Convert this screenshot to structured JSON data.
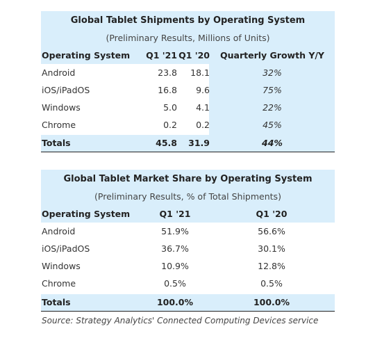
{
  "table1": {
    "title": "Global Tablet Shipments by Operating System",
    "subtitle": "(Preliminary Results, Millions of Units)",
    "headers": [
      "Operating System",
      "Q1 '21",
      "Q1 '20",
      "Quarterly Growth Y/Y"
    ],
    "rows": [
      [
        "Android",
        "23.8",
        "18.1",
        "32%"
      ],
      [
        "iOS/iPadOS",
        "16.8",
        "9.6",
        "75%"
      ],
      [
        "Windows",
        "5.0",
        "4.1",
        "22%"
      ],
      [
        "Chrome",
        "0.2",
        "0.2",
        "45%"
      ]
    ],
    "totals": [
      "Totals",
      "45.8",
      "31.9",
      "44%"
    ]
  },
  "table2": {
    "title": "Global Tablet Market Share by Operating System",
    "subtitle": "(Preliminary Results, % of Total Shipments)",
    "headers": [
      "Operating System",
      "Q1 '21",
      "Q1 '20"
    ],
    "rows": [
      [
        "Android",
        "51.9%",
        "56.6%"
      ],
      [
        "iOS/iPadOS",
        "36.7%",
        "30.1%"
      ],
      [
        "Windows",
        "10.9%",
        "12.8%"
      ],
      [
        "Chrome",
        "0.5%",
        "0.5%"
      ]
    ],
    "totals": [
      "Totals",
      "100.0%",
      "100.0%"
    ]
  },
  "source": "Source: Strategy Analytics' Connected Computing Devices service",
  "colors": {
    "band": "#d9eefb",
    "rule": "#222222"
  }
}
